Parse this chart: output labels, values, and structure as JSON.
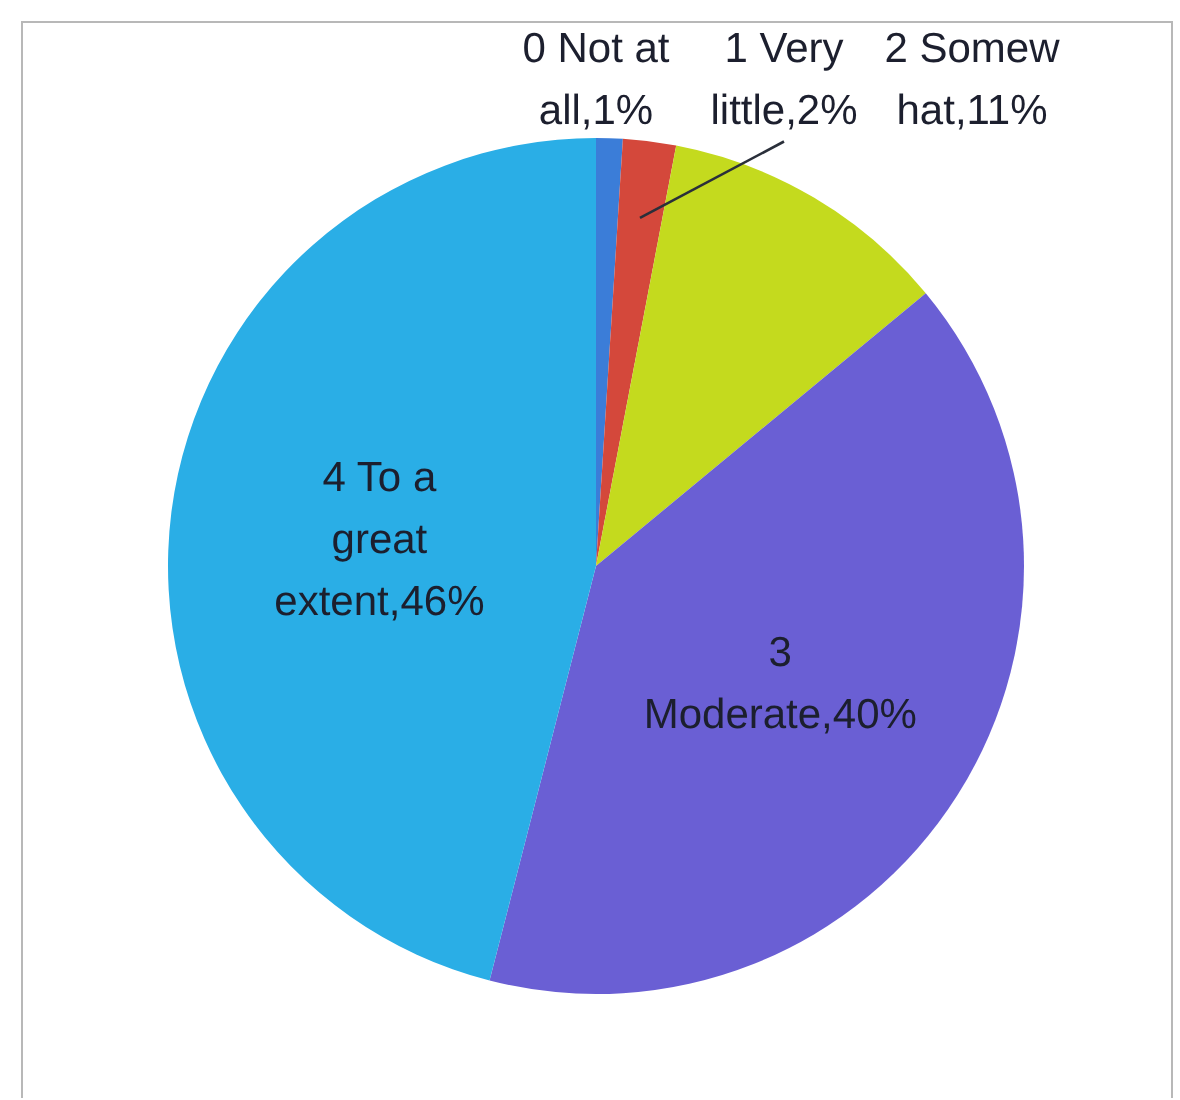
{
  "chart_data": {
    "type": "pie",
    "categories": [
      "0 Not at all",
      "1 Very little",
      "2 Somewhat",
      "3 Moderate",
      "4 To a great extent"
    ],
    "values": [
      1,
      2,
      11,
      40,
      46
    ],
    "value_labels": [
      "1%",
      "2%",
      "11%",
      "40%",
      "46%"
    ],
    "colors": [
      "#3b7dd8",
      "#d4483b",
      "#c4da1e",
      "#6a5fd4",
      "#2aaee6"
    ]
  }
}
